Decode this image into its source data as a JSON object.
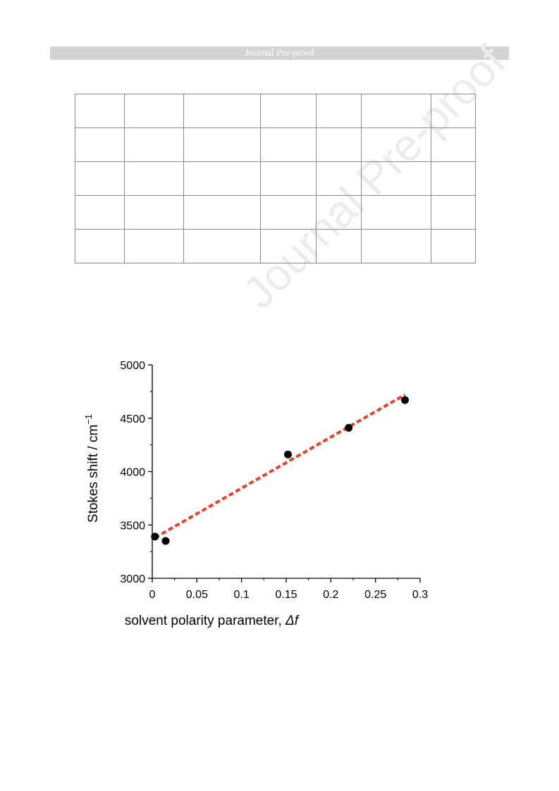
{
  "header": {
    "banner_text": "Journal Pre-proof"
  },
  "watermark": {
    "text": "Journal Pre-proof"
  },
  "table": {
    "rows": [
      [
        "",
        "",
        "",
        "",
        "",
        "",
        ""
      ],
      [
        "",
        "",
        "",
        "",
        "",
        "",
        ""
      ],
      [
        "",
        "",
        "",
        "",
        "",
        "",
        ""
      ],
      [
        "",
        "",
        "",
        "",
        "",
        "",
        ""
      ],
      [
        "",
        "",
        "",
        "",
        "",
        "",
        ""
      ]
    ]
  },
  "chart_data": {
    "type": "scatter",
    "xlabel_main": "solvent polarity parameter, ",
    "xlabel_italic": "Δf",
    "ylabel_main": "Stokes shift / cm",
    "ylabel_sup": "−1",
    "xlim": [
      0,
      0.3
    ],
    "ylim": [
      3000,
      5000
    ],
    "x_ticks": [
      0,
      0.05,
      0.1,
      0.15,
      0.2,
      0.25,
      0.3
    ],
    "x_tick_labels": [
      "0",
      "0.05",
      "0.1",
      "0.15",
      "0.2",
      "0.25",
      "0.3"
    ],
    "y_ticks": [
      3000,
      3500,
      4000,
      4500,
      5000
    ],
    "y_tick_labels": [
      "3000",
      "3500",
      "4000",
      "4500",
      "5000"
    ],
    "points": [
      {
        "x": 0.003,
        "y": 3390
      },
      {
        "x": 0.015,
        "y": 3350
      },
      {
        "x": 0.152,
        "y": 4160
      },
      {
        "x": 0.22,
        "y": 4410
      },
      {
        "x": 0.283,
        "y": 4670
      }
    ],
    "fit_line": {
      "x": [
        0.003,
        0.283
      ],
      "y": [
        3380,
        4720
      ],
      "color": "#e8402a",
      "style": "dashed"
    },
    "point_color": "#000000",
    "grid": false
  }
}
